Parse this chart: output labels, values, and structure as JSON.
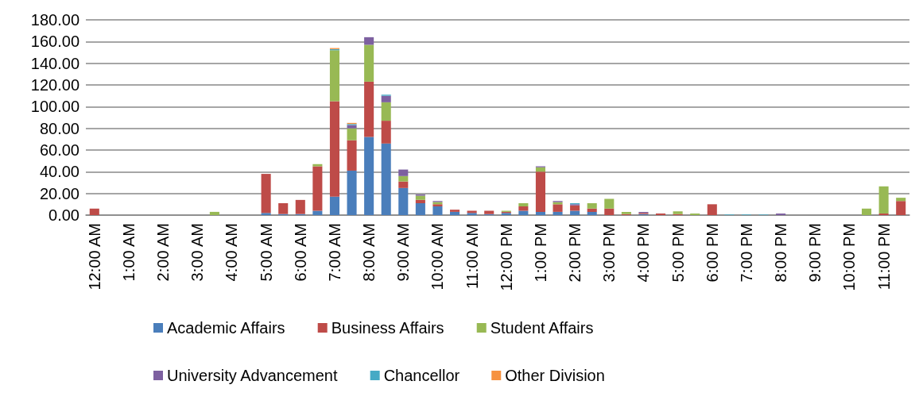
{
  "chart_data": {
    "type": "bar",
    "stacked": true,
    "categories": [
      "12:00 AM",
      null,
      "1:00 AM",
      null,
      "2:00 AM",
      null,
      "3:00 AM",
      null,
      "4:00 AM",
      null,
      "5:00 AM",
      null,
      "6:00 AM",
      null,
      "7:00 AM",
      null,
      "8:00 AM",
      null,
      "9:00 AM",
      null,
      "10:00 AM",
      null,
      "11:00 AM",
      null,
      "12:00 PM",
      null,
      "1:00 PM",
      null,
      "2:00 PM",
      null,
      "3:00 PM",
      null,
      "4:00 PM",
      null,
      "5:00 PM",
      null,
      "6:00 PM",
      null,
      "7:00 PM",
      null,
      "8:00 PM",
      null,
      "9:00 PM",
      null,
      "10:00 PM",
      null,
      "11:00 PM",
      null
    ],
    "series": [
      {
        "name": "Academic Affairs",
        "color": "#4a7ebb",
        "values": [
          0,
          0,
          0,
          0,
          0,
          0,
          0,
          0,
          0,
          0,
          2,
          1,
          1,
          4,
          17,
          41,
          72,
          66,
          25,
          11,
          8,
          3,
          2,
          1,
          2,
          4,
          3,
          3,
          4,
          3,
          0,
          0,
          1,
          0,
          0,
          0,
          0,
          0,
          0,
          0,
          0,
          0,
          0,
          0,
          0,
          0,
          0,
          0
        ]
      },
      {
        "name": "Business Affairs",
        "color": "#be4b48",
        "values": [
          6,
          0,
          0,
          0,
          0,
          0,
          0,
          0,
          0,
          0,
          36,
          10,
          13,
          41,
          88,
          28,
          51,
          21,
          6,
          3,
          2,
          2,
          2,
          3,
          1,
          4,
          37,
          7,
          5,
          3,
          6,
          1,
          1,
          1.5,
          1,
          0,
          10,
          0,
          0,
          0,
          0,
          0,
          0,
          0,
          0,
          0,
          1.5,
          13
        ]
      },
      {
        "name": "Student Affairs",
        "color": "#98b954",
        "values": [
          0,
          0,
          0,
          0,
          0,
          0,
          0,
          3,
          0,
          0,
          0,
          0,
          0,
          2,
          47,
          11,
          34,
          17,
          5,
          4,
          2,
          0,
          0,
          0,
          1,
          3,
          4,
          2,
          0,
          5,
          9,
          2,
          0,
          0,
          2.5,
          1.5,
          0,
          0,
          0,
          0,
          0,
          0,
          0,
          0,
          0,
          6,
          25,
          3
        ]
      },
      {
        "name": "University Advancement",
        "color": "#7d60a0",
        "values": [
          0,
          0,
          0,
          0,
          0,
          0,
          0,
          0,
          0,
          0,
          0,
          0,
          0,
          0,
          0,
          3,
          7,
          6,
          6,
          1,
          1,
          0,
          0,
          0,
          0,
          0,
          1,
          1,
          1,
          0,
          0,
          0,
          1,
          0,
          0,
          0,
          0,
          0,
          0,
          0,
          1.5,
          0,
          0,
          0,
          0,
          0,
          0,
          0
        ]
      },
      {
        "name": "Chancellor",
        "color": "#46aac5",
        "values": [
          0,
          0,
          0,
          0,
          0,
          0,
          0,
          0,
          0,
          0,
          0,
          0,
          0,
          0,
          1,
          1,
          0,
          1,
          0,
          0,
          0,
          0,
          0,
          0,
          0,
          0,
          0,
          0,
          1,
          0,
          0,
          0,
          0,
          0,
          0,
          0,
          0,
          0.5,
          0.5,
          0.5,
          0,
          0,
          0,
          0,
          0,
          0,
          0,
          0
        ]
      },
      {
        "name": "Other Division",
        "color": "#f69240",
        "values": [
          0,
          0,
          0,
          0,
          0,
          0,
          0,
          0,
          0,
          0,
          0,
          0,
          0,
          0,
          1,
          1,
          0,
          0,
          0,
          0,
          0,
          0,
          0,
          0,
          0,
          0,
          0,
          0,
          0,
          0,
          0,
          0,
          0,
          0,
          0,
          0,
          0,
          0,
          0,
          0,
          0,
          0,
          0,
          0,
          0,
          0,
          0,
          0
        ]
      }
    ],
    "ylim": [
      0,
      180
    ],
    "yticks": [
      {
        "value": 0,
        "label": "0.00"
      },
      {
        "value": 20,
        "label": "20.00"
      },
      {
        "value": 40,
        "label": "40.00"
      },
      {
        "value": 60,
        "label": "60.00"
      },
      {
        "value": 80,
        "label": "80.00"
      },
      {
        "value": 100,
        "label": "100.00"
      },
      {
        "value": 120,
        "label": "120.00"
      },
      {
        "value": 140,
        "label": "140.00"
      },
      {
        "value": 160,
        "label": "160.00"
      },
      {
        "value": 180,
        "label": "180.00"
      }
    ],
    "grid": "y",
    "legend": "bottom"
  }
}
